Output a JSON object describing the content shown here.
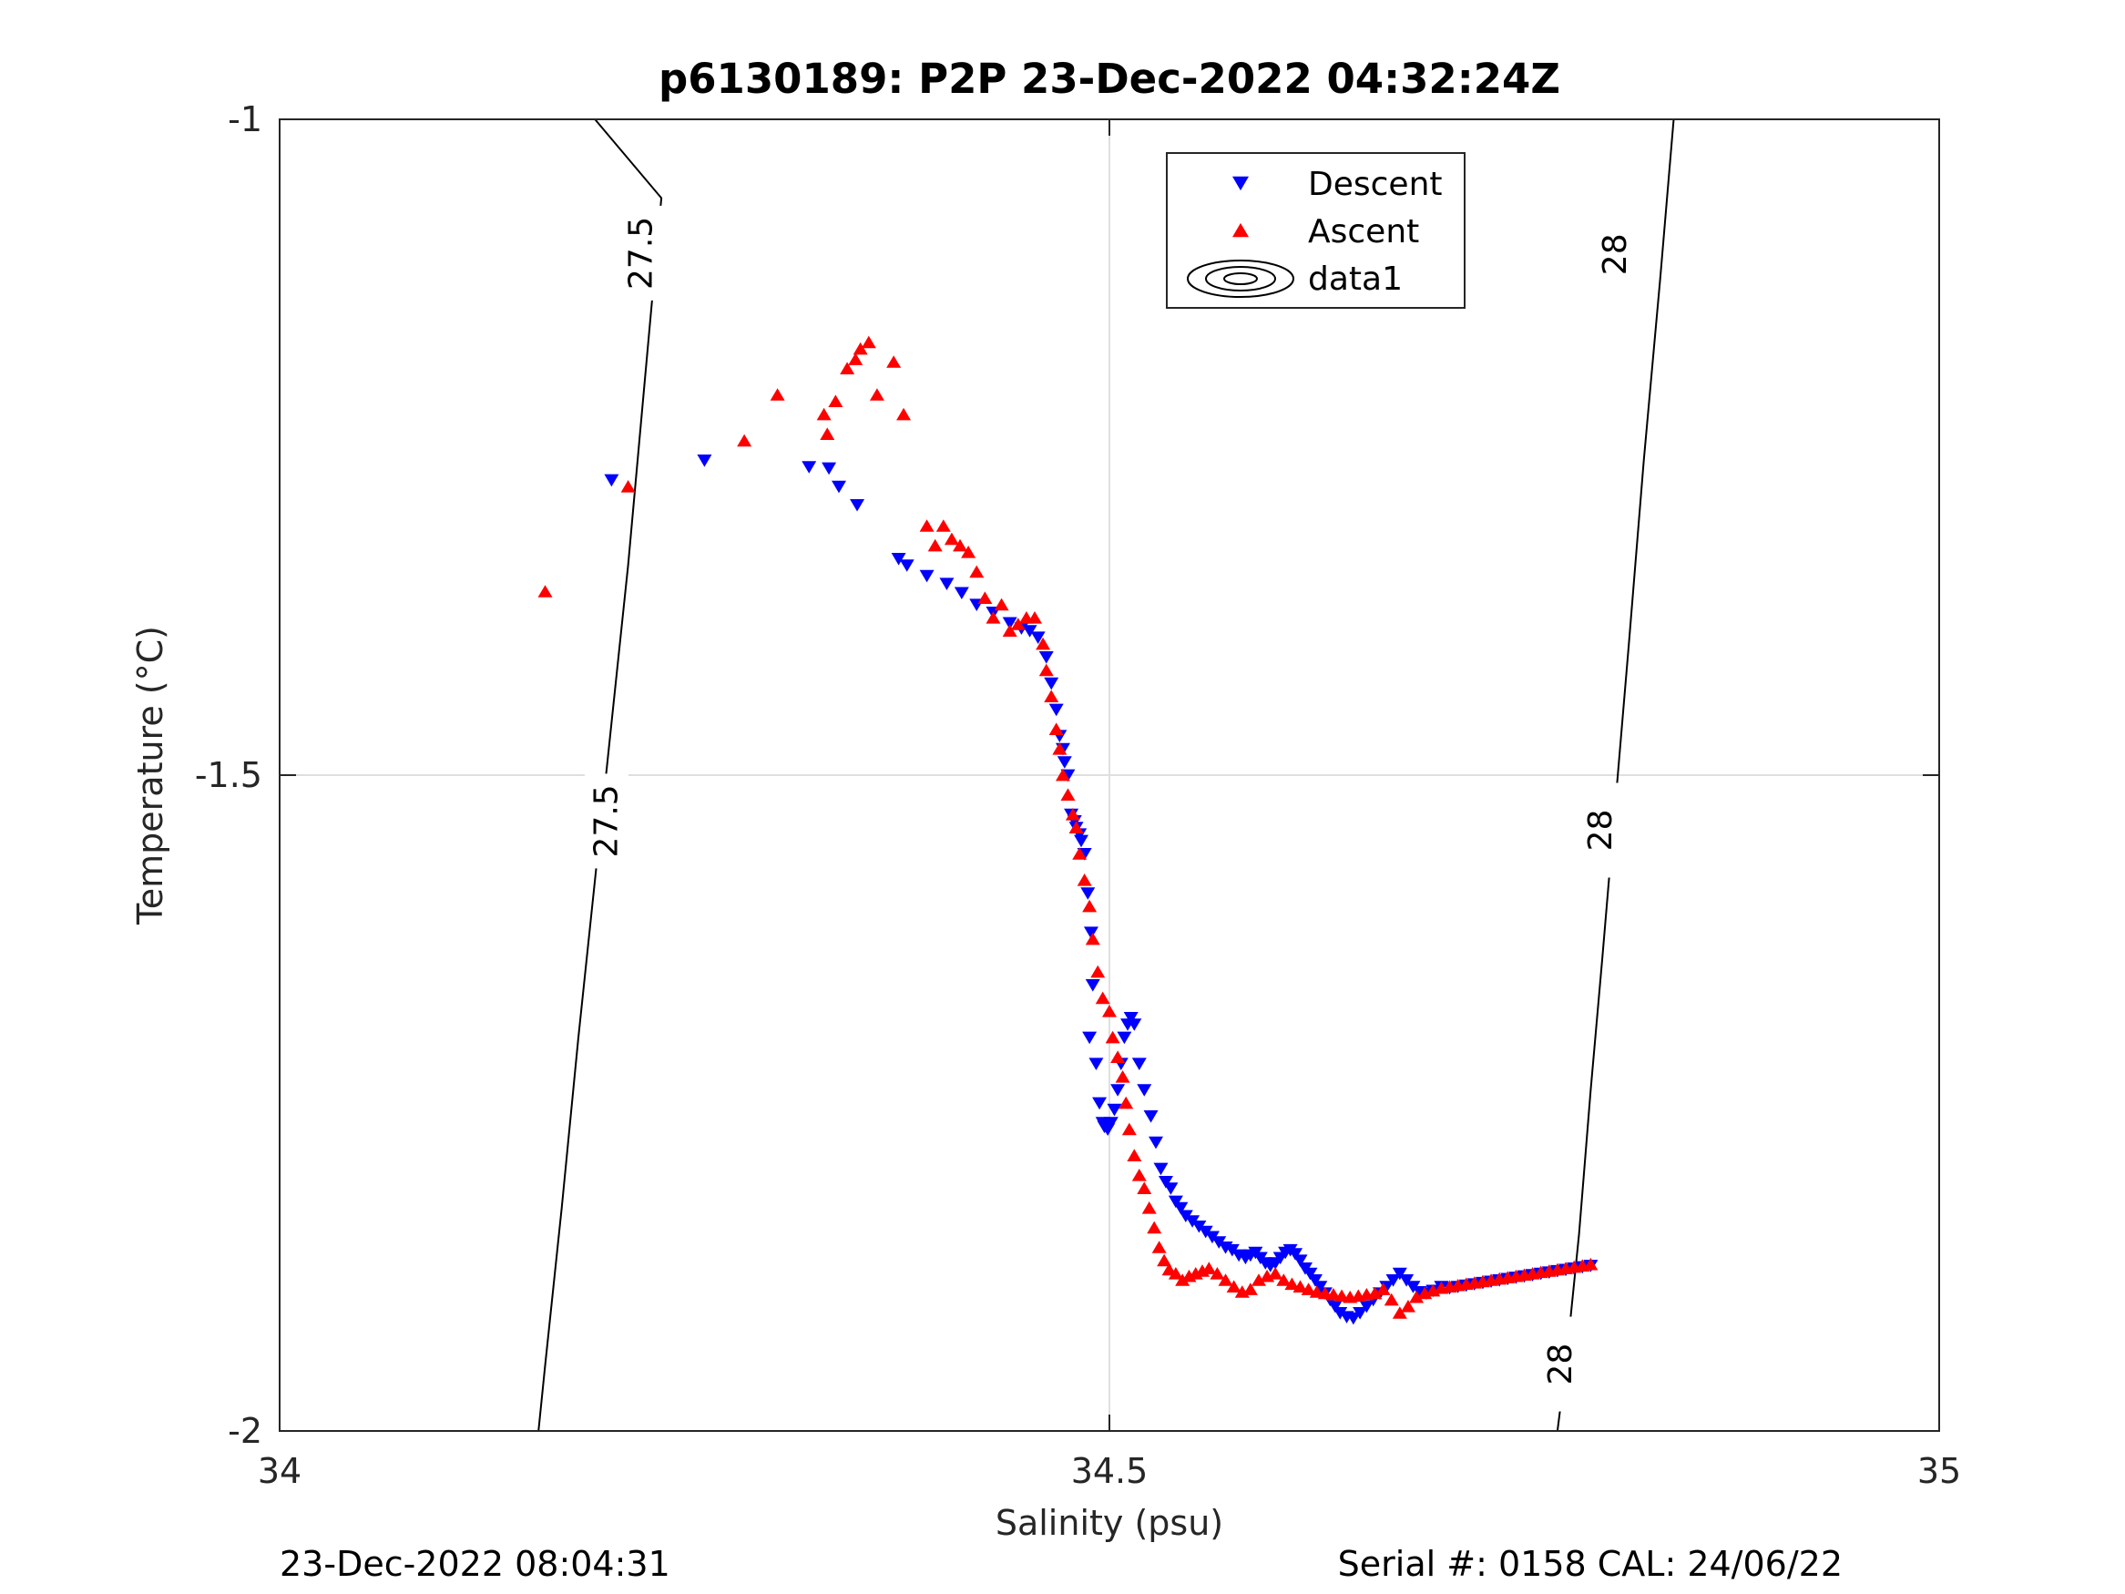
{
  "chart_data": {
    "type": "scatter",
    "title": "p6130189: P2P 23-Dec-2022 04:32:24Z",
    "xlabel": "Salinity (psu)",
    "ylabel": "Temperature (°C)",
    "xlim": [
      34,
      35
    ],
    "ylim": [
      -2,
      -1
    ],
    "xticks": [
      34,
      34.5,
      35
    ],
    "xtick_labels": [
      "34",
      "34.5",
      "35"
    ],
    "yticks": [
      -2,
      -1.5,
      -1
    ],
    "ytick_labels": [
      "-2",
      "-1.5",
      "-1"
    ],
    "grid": true,
    "legend_position": "top-center",
    "footer_left": "23-Dec-2022 08:04:31",
    "footer_right": "Serial #: 0158  CAL: 24/06/22",
    "contours": [
      {
        "level": "27.5",
        "points": [
          [
            34.156,
            -2.0
          ],
          [
            34.16,
            -1.95
          ],
          [
            34.17,
            -1.83
          ],
          [
            34.18,
            -1.7
          ],
          [
            34.19,
            -1.58
          ],
          [
            34.2,
            -1.46
          ],
          [
            34.21,
            -1.34
          ],
          [
            34.22,
            -1.2
          ],
          [
            34.23,
            -1.06
          ],
          [
            34.19,
            -1.0
          ]
        ],
        "labels": [
          {
            "text": "27.5",
            "x": 34.197,
            "y": -1.535
          },
          {
            "text": "27.5",
            "x": 34.218,
            "y": -1.102
          }
        ]
      },
      {
        "level": "28",
        "points": [
          [
            34.77,
            -2.0
          ],
          [
            34.775,
            -1.95
          ],
          [
            34.783,
            -1.85
          ],
          [
            34.79,
            -1.74
          ],
          [
            34.797,
            -1.64
          ],
          [
            34.805,
            -1.52
          ],
          [
            34.813,
            -1.4
          ],
          [
            34.822,
            -1.26
          ],
          [
            34.832,
            -1.12
          ],
          [
            34.84,
            -1.0
          ]
        ],
        "labels": [
          {
            "text": "28",
            "x": 34.772,
            "y": -1.949
          },
          {
            "text": "28",
            "x": 34.796,
            "y": -1.542
          },
          {
            "text": "28",
            "x": 34.805,
            "y": -1.103
          }
        ]
      }
    ],
    "series": [
      {
        "name": "Descent",
        "marker": "triangle-down",
        "color": "#0000ff",
        "x": [
          34.2,
          34.256,
          34.319,
          34.331,
          34.337,
          34.348,
          34.373,
          34.378,
          34.39,
          34.402,
          34.411,
          34.42,
          34.43,
          34.44,
          34.447,
          34.452,
          34.457,
          34.462,
          34.465,
          34.468,
          34.47,
          34.472,
          34.473,
          34.475,
          34.477,
          34.479,
          34.48,
          34.482,
          34.483,
          34.485,
          34.487,
          34.489,
          34.49,
          34.488,
          34.492,
          34.494,
          34.496,
          34.497,
          34.499,
          34.501,
          34.503,
          34.505,
          34.507,
          34.509,
          34.511,
          34.513,
          34.515,
          34.518,
          34.521,
          34.525,
          34.528,
          34.531,
          34.534,
          34.537,
          34.54,
          34.543,
          34.546,
          34.55,
          34.554,
          34.558,
          34.562,
          34.566,
          34.57,
          34.574,
          34.578,
          34.582,
          34.585,
          34.588,
          34.591,
          34.594,
          34.597,
          34.6,
          34.603,
          34.606,
          34.609,
          34.612,
          34.615,
          34.618,
          34.621,
          34.624,
          34.627,
          34.63,
          34.633,
          34.636,
          34.639,
          34.643,
          34.647,
          34.651,
          34.655,
          34.659,
          34.663,
          34.667,
          34.671,
          34.675,
          34.679,
          34.683,
          34.687,
          34.691,
          34.695,
          34.7,
          34.705,
          34.71,
          34.715,
          34.72,
          34.725,
          34.73,
          34.735,
          34.74,
          34.745,
          34.75,
          34.755,
          34.76,
          34.765,
          34.77,
          34.775,
          34.78,
          34.785,
          34.79
        ],
        "y": [
          -1.275,
          -1.26,
          -1.265,
          -1.266,
          -1.28,
          -1.294,
          -1.335,
          -1.34,
          -1.348,
          -1.354,
          -1.361,
          -1.37,
          -1.376,
          -1.384,
          -1.388,
          -1.39,
          -1.395,
          -1.41,
          -1.43,
          -1.45,
          -1.47,
          -1.48,
          -1.49,
          -1.5,
          -1.53,
          -1.535,
          -1.54,
          -1.545,
          -1.55,
          -1.56,
          -1.59,
          -1.62,
          -1.66,
          -1.7,
          -1.72,
          -1.75,
          -1.765,
          -1.768,
          -1.77,
          -1.765,
          -1.755,
          -1.74,
          -1.72,
          -1.7,
          -1.69,
          -1.685,
          -1.69,
          -1.72,
          -1.74,
          -1.76,
          -1.78,
          -1.8,
          -1.81,
          -1.815,
          -1.825,
          -1.83,
          -1.836,
          -1.84,
          -1.844,
          -1.848,
          -1.852,
          -1.856,
          -1.86,
          -1.862,
          -1.866,
          -1.868,
          -1.866,
          -1.864,
          -1.868,
          -1.872,
          -1.874,
          -1.872,
          -1.868,
          -1.864,
          -1.862,
          -1.865,
          -1.87,
          -1.876,
          -1.88,
          -1.885,
          -1.89,
          -1.895,
          -1.9,
          -1.905,
          -1.91,
          -1.913,
          -1.914,
          -1.91,
          -1.905,
          -1.9,
          -1.895,
          -1.89,
          -1.885,
          -1.88,
          -1.885,
          -1.89,
          -1.894,
          -1.895,
          -1.893,
          -1.89,
          -1.891,
          -1.89,
          -1.889,
          -1.888,
          -1.887,
          -1.886,
          -1.885,
          -1.884,
          -1.883,
          -1.882,
          -1.881,
          -1.88,
          -1.879,
          -1.878,
          -1.877,
          -1.876,
          -1.875,
          -1.874
        ]
      },
      {
        "name": "Ascent",
        "marker": "triangle-up",
        "color": "#ff0000",
        "x": [
          34.16,
          34.21,
          34.28,
          34.3,
          34.328,
          34.33,
          34.335,
          34.342,
          34.347,
          34.35,
          34.355,
          34.36,
          34.37,
          34.376,
          34.39,
          34.395,
          34.4,
          34.405,
          34.41,
          34.415,
          34.42,
          34.425,
          34.43,
          34.435,
          34.44,
          34.445,
          34.45,
          34.455,
          34.46,
          34.462,
          34.465,
          34.468,
          34.47,
          34.472,
          34.475,
          34.478,
          34.48,
          34.482,
          34.485,
          34.488,
          34.49,
          34.493,
          34.496,
          34.5,
          34.502,
          34.505,
          34.508,
          34.51,
          34.512,
          34.515,
          34.518,
          34.521,
          34.524,
          34.527,
          34.53,
          34.533,
          34.536,
          34.54,
          34.544,
          34.548,
          34.552,
          34.556,
          34.56,
          34.565,
          34.57,
          34.575,
          34.58,
          34.585,
          34.59,
          34.595,
          34.6,
          34.605,
          34.61,
          34.615,
          34.62,
          34.625,
          34.63,
          34.635,
          34.64,
          34.645,
          34.65,
          34.655,
          34.66,
          34.665,
          34.67,
          34.675,
          34.68,
          34.685,
          34.69,
          34.695,
          34.7,
          34.705,
          34.71,
          34.715,
          34.72,
          34.725,
          34.73,
          34.735,
          34.74,
          34.745,
          34.75,
          34.755,
          34.76,
          34.765,
          34.77,
          34.775,
          34.78,
          34.785,
          34.79
        ],
        "y": [
          -1.36,
          -1.28,
          -1.245,
          -1.21,
          -1.225,
          -1.24,
          -1.215,
          -1.19,
          -1.183,
          -1.175,
          -1.17,
          -1.21,
          -1.185,
          -1.225,
          -1.31,
          -1.325,
          -1.31,
          -1.32,
          -1.325,
          -1.33,
          -1.345,
          -1.365,
          -1.38,
          -1.37,
          -1.39,
          -1.385,
          -1.38,
          -1.38,
          -1.4,
          -1.42,
          -1.44,
          -1.465,
          -1.48,
          -1.5,
          -1.515,
          -1.53,
          -1.54,
          -1.56,
          -1.58,
          -1.6,
          -1.625,
          -1.65,
          -1.67,
          -1.68,
          -1.7,
          -1.715,
          -1.73,
          -1.75,
          -1.77,
          -1.79,
          -1.805,
          -1.815,
          -1.83,
          -1.845,
          -1.86,
          -1.87,
          -1.877,
          -1.88,
          -1.885,
          -1.882,
          -1.88,
          -1.878,
          -1.876,
          -1.88,
          -1.885,
          -1.89,
          -1.894,
          -1.892,
          -1.885,
          -1.882,
          -1.88,
          -1.885,
          -1.888,
          -1.89,
          -1.892,
          -1.894,
          -1.895,
          -1.896,
          -1.897,
          -1.898,
          -1.897,
          -1.896,
          -1.895,
          -1.892,
          -1.9,
          -1.91,
          -1.905,
          -1.898,
          -1.895,
          -1.893,
          -1.891,
          -1.89,
          -1.889,
          -1.888,
          -1.887,
          -1.886,
          -1.885,
          -1.884,
          -1.883,
          -1.882,
          -1.881,
          -1.88,
          -1.879,
          -1.878,
          -1.877,
          -1.876,
          -1.875,
          -1.874,
          -1.873
        ]
      }
    ],
    "legend": [
      {
        "label": "Descent",
        "marker": "triangle-down",
        "color": "#0000ff"
      },
      {
        "label": "Ascent",
        "marker": "triangle-up",
        "color": "#ff0000"
      },
      {
        "label": "data1",
        "marker": "contour",
        "color": "#000000"
      }
    ]
  }
}
